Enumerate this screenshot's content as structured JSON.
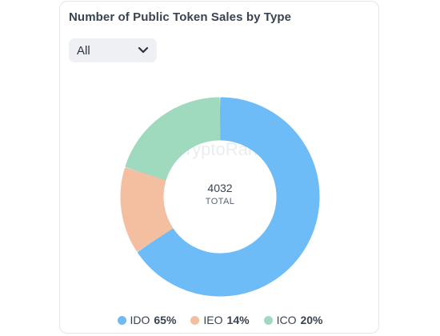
{
  "card": {
    "title": "Number of Public Token Sales by Type"
  },
  "filter": {
    "selected": "All"
  },
  "watermark": "CryptoRank",
  "chart_data": {
    "type": "pie",
    "donut": true,
    "center_value": "4032",
    "center_label": "TOTAL",
    "slices": [
      {
        "name": "IDO",
        "percent": 65,
        "label": "65%",
        "color": "#6dbcf7"
      },
      {
        "name": "IEO",
        "percent": 14,
        "label": "14%",
        "color": "#f4bea0"
      },
      {
        "name": "ICO",
        "percent": 20,
        "label": "20%",
        "color": "#9fd9be"
      }
    ]
  }
}
